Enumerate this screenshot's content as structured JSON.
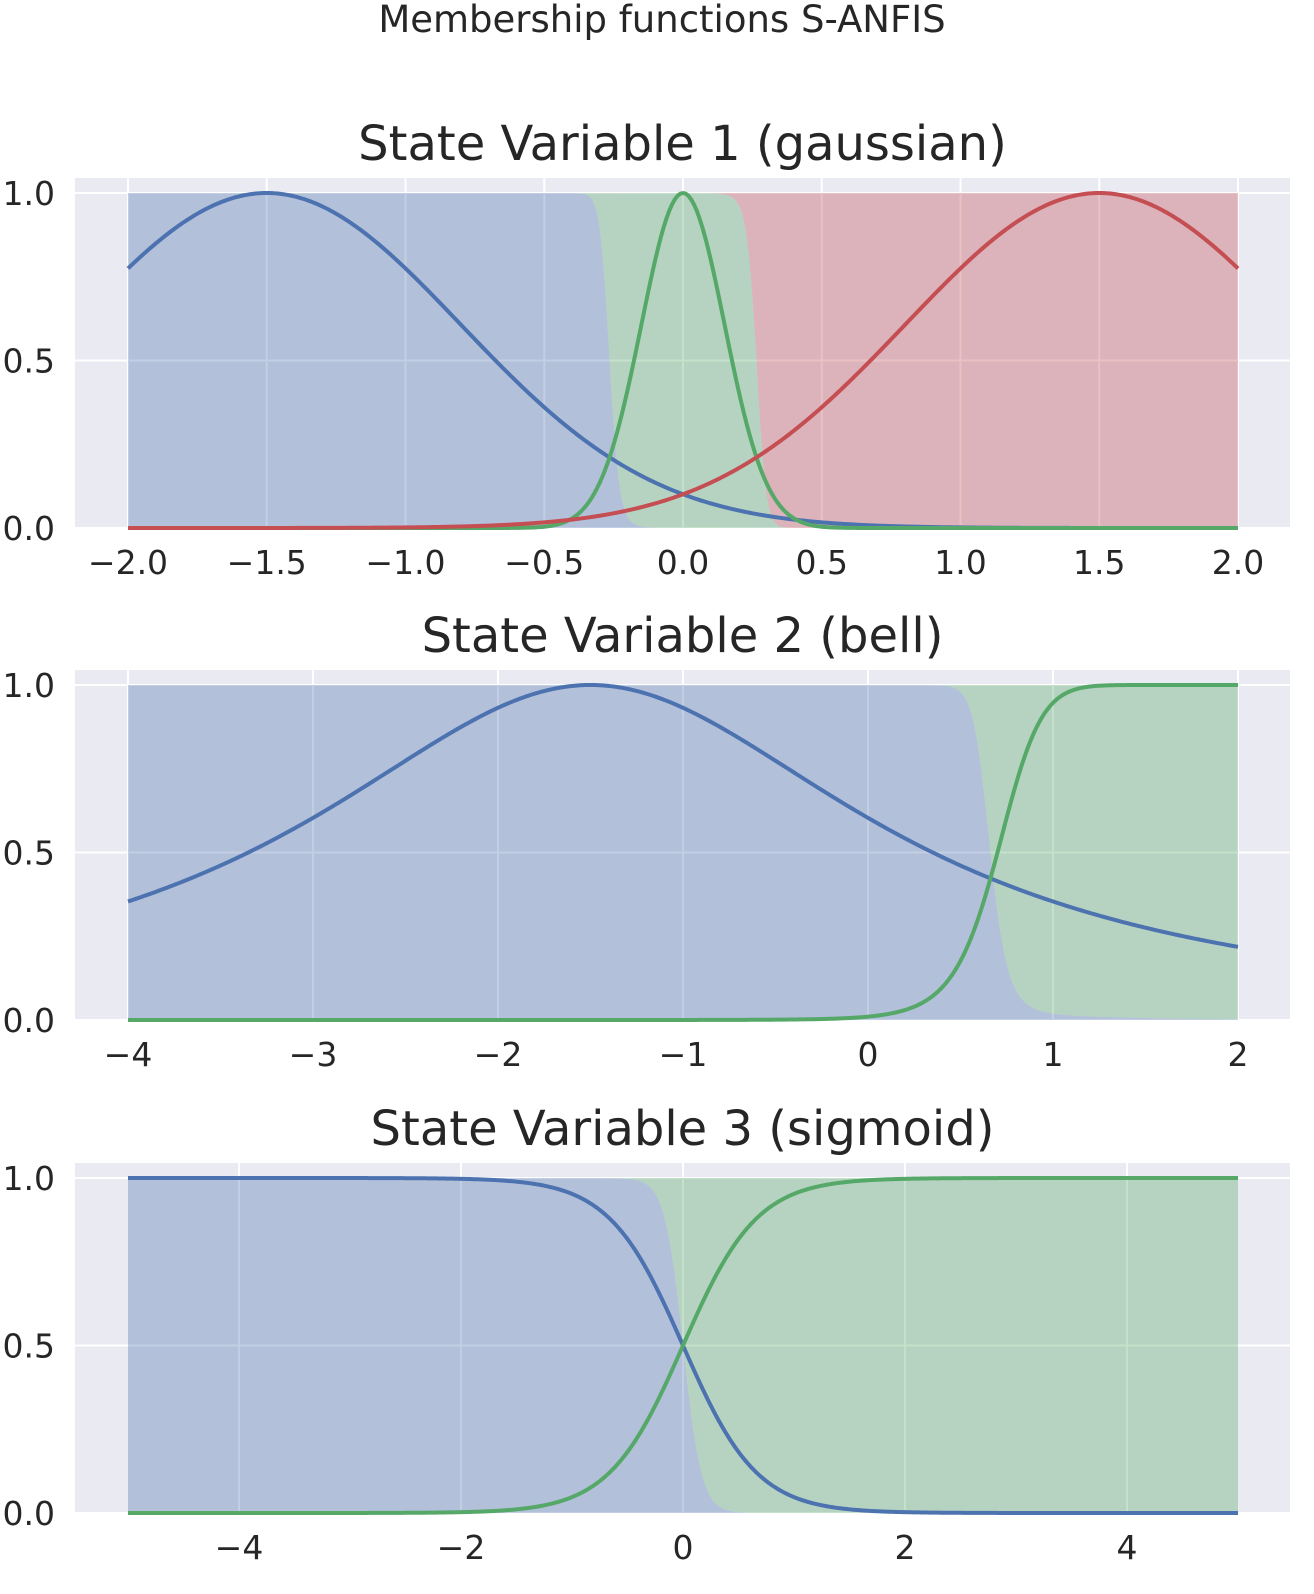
{
  "figure": {
    "suptitle": "Membership functions S-ANFIS"
  },
  "colors": {
    "blue": "#4c72b0",
    "green": "#55a868",
    "red": "#c44e52",
    "plot_background": "#eaeaf2",
    "grid": "#ffffff"
  },
  "chart_data": [
    {
      "type": "line",
      "title": "State Variable 1 (gaussian)",
      "xlabel": "",
      "ylabel": "",
      "xlim": [
        -2.0,
        2.0
      ],
      "ylim": [
        0.0,
        1.0
      ],
      "x_ticks": [
        -2.0,
        -1.5,
        -1.0,
        -0.5,
        0.0,
        0.5,
        1.0,
        1.5,
        2.0
      ],
      "x_tick_labels": [
        "−2.0",
        "−1.5",
        "−1.0",
        "−0.5",
        "0.0",
        "0.5",
        "1.0",
        "1.5",
        "2.0"
      ],
      "y_ticks": [
        0.0,
        0.5,
        1.0
      ],
      "y_tick_labels": [
        "0.0",
        "0.5",
        "1.0"
      ],
      "grid": true,
      "legend": "none",
      "series": [
        {
          "kind": "gaussian",
          "center": -1.5,
          "sigma": 0.7,
          "color": "blue"
        },
        {
          "kind": "gaussian",
          "center": 0.0,
          "sigma": 0.15,
          "color": "green"
        },
        {
          "kind": "gaussian",
          "center": 1.5,
          "sigma": 0.7,
          "color": "red"
        }
      ],
      "shaded_regions": "stacked normalized memberships (blue, green, red)"
    },
    {
      "type": "line",
      "title": "State Variable 2 (bell)",
      "xlabel": "",
      "ylabel": "",
      "xlim": [
        -4,
        2
      ],
      "ylim": [
        0.0,
        1.0
      ],
      "x_ticks": [
        -4,
        -3,
        -2,
        -1,
        0,
        1,
        2
      ],
      "x_tick_labels": [
        "−4",
        "−3",
        "−2",
        "−1",
        "0",
        "1",
        "2"
      ],
      "y_ticks": [
        0.0,
        0.5,
        1.0
      ],
      "y_tick_labels": [
        "0.0",
        "0.5",
        "1.0"
      ],
      "grid": true,
      "legend": "none",
      "series": [
        {
          "kind": "bell",
          "a": 1.85,
          "b": 1.0,
          "c": -1.5,
          "color": "blue"
        },
        {
          "kind": "bell",
          "a": 1.2,
          "b": 5.0,
          "c": 1.9,
          "color": "green"
        }
      ],
      "shaded_regions": "stacked normalized memberships (blue, green)"
    },
    {
      "type": "line",
      "title": "State Variable 3 (sigmoid)",
      "xlabel": "",
      "ylabel": "",
      "xlim": [
        -5,
        5
      ],
      "ylim": [
        0.0,
        1.0
      ],
      "x_ticks": [
        -4,
        -2,
        0,
        2,
        4
      ],
      "x_tick_labels": [
        "−4",
        "−2",
        "0",
        "2",
        "4"
      ],
      "y_ticks": [
        0.0,
        0.5,
        1.0
      ],
      "y_tick_labels": [
        "0.0",
        "0.5",
        "1.0"
      ],
      "grid": true,
      "legend": "none",
      "series": [
        {
          "kind": "sigmoid",
          "center": 0.0,
          "slope": -3.0,
          "color": "blue"
        },
        {
          "kind": "sigmoid",
          "center": 0.0,
          "slope": 3.0,
          "color": "green"
        }
      ],
      "shaded_regions": "stacked normalized memberships (blue, green)"
    }
  ]
}
